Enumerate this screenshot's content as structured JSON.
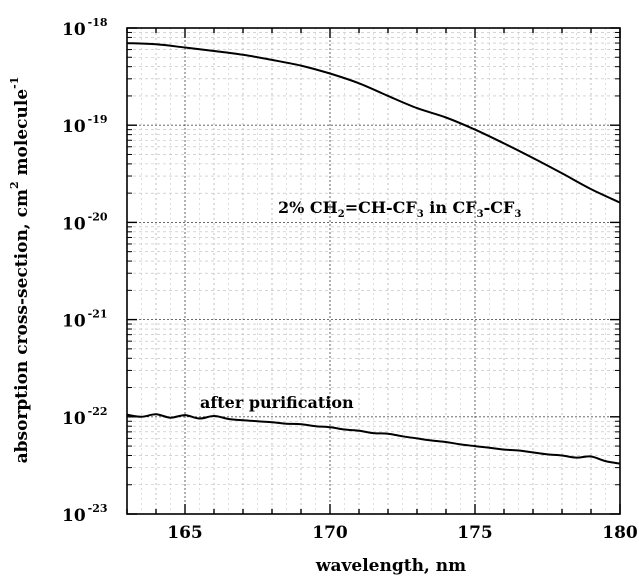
{
  "chart_data": {
    "type": "line",
    "title": "",
    "xlabel": "wavelength, nm",
    "ylabel": {
      "text_before": "absorption cross-section, cm",
      "sup": "2",
      "text_after": " molecule",
      "sup2": "-1"
    },
    "xlim": [
      163,
      180
    ],
    "ylim": [
      1e-23,
      1e-18
    ],
    "yscale": "log",
    "grid": true,
    "x_ticks": [
      165,
      170,
      175,
      180
    ],
    "y_ticks": [
      {
        "value": 1e-18,
        "base": "10",
        "exp": "-18"
      },
      {
        "value": 1e-19,
        "base": "10",
        "exp": "-19"
      },
      {
        "value": 1e-20,
        "base": "10",
        "exp": "-20"
      },
      {
        "value": 1e-21,
        "base": "10",
        "exp": "-21"
      },
      {
        "value": 1e-22,
        "base": "10",
        "exp": "-22"
      },
      {
        "value": 1e-23,
        "base": "10",
        "exp": "-23"
      }
    ],
    "series": [
      {
        "label_parts": [
          {
            "t": "2% CH"
          },
          {
            "sub": "2"
          },
          {
            "t": "=CH-CF"
          },
          {
            "sub": "3"
          },
          {
            "t": " in CF"
          },
          {
            "sub": "3"
          },
          {
            "t": "-CF"
          },
          {
            "sub": "3"
          }
        ],
        "x": [
          163,
          164,
          165,
          166,
          167,
          168,
          169,
          170,
          171,
          172,
          173,
          174,
          175,
          176,
          177,
          178,
          179,
          180
        ],
        "y": [
          7e-19,
          6.8e-19,
          6.3e-19,
          5.8e-19,
          5.3e-19,
          4.7e-19,
          4.1e-19,
          3.4e-19,
          2.7e-19,
          2e-19,
          1.5e-19,
          1.2e-19,
          9e-20,
          6.5e-20,
          4.6e-20,
          3.2e-20,
          2.2e-20,
          1.6e-20
        ]
      },
      {
        "label_parts": [
          {
            "t": "after purification"
          }
        ],
        "x": [
          163,
          163.5,
          164,
          164.5,
          165,
          165.5,
          166,
          166.5,
          167,
          167.5,
          168,
          168.5,
          169,
          169.5,
          170,
          170.5,
          171,
          171.5,
          172,
          172.5,
          173,
          173.5,
          174,
          174.5,
          175,
          175.5,
          176,
          176.5,
          177,
          177.5,
          178,
          178.5,
          179,
          179.5,
          180
        ],
        "y": [
          1.05e-22,
          1e-22,
          1.06e-22,
          9.8e-23,
          1.04e-22,
          9.6e-23,
          1.02e-22,
          9.5e-23,
          9.2e-23,
          9e-23,
          8.8e-23,
          8.5e-23,
          8.4e-23,
          8e-23,
          7.8e-23,
          7.4e-23,
          7.2e-23,
          6.8e-23,
          6.7e-23,
          6.3e-23,
          6e-23,
          5.7e-23,
          5.5e-23,
          5.2e-23,
          5e-23,
          4.8e-23,
          4.6e-23,
          4.5e-23,
          4.3e-23,
          4.1e-23,
          4e-23,
          3.8e-23,
          3.9e-23,
          3.5e-23,
          3.3e-23
        ]
      }
    ]
  }
}
